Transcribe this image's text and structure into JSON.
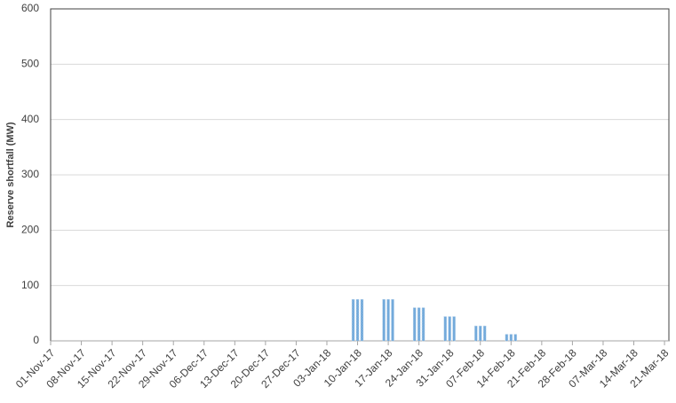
{
  "chart_data": {
    "type": "bar",
    "y_label": "Reserve shortfall (MW)",
    "x": [
      "09-Jan-18",
      "10-Jan-18",
      "11-Jan-18",
      "16-Jan-18",
      "17-Jan-18",
      "18-Jan-18",
      "23-Jan-18",
      "24-Jan-18",
      "25-Jan-18",
      "30-Jan-18",
      "31-Jan-18",
      "01-Feb-18",
      "06-Feb-18",
      "07-Feb-18",
      "08-Feb-18",
      "13-Feb-18",
      "14-Feb-18",
      "15-Feb-18"
    ],
    "values": [
      75,
      75,
      75,
      75,
      75,
      75,
      60,
      60,
      60,
      44,
      44,
      44,
      27,
      27,
      27,
      12,
      12,
      12
    ],
    "color": "#5b9bd5",
    "xlim": [
      "01-Nov-17",
      "22-Mar-18"
    ],
    "xticks": [
      "01-Nov-17",
      "08-Nov-17",
      "15-Nov-17",
      "22-Nov-17",
      "29-Nov-17",
      "06-Dec-17",
      "13-Dec-17",
      "20-Dec-17",
      "27-Dec-17",
      "03-Jan-18",
      "10-Jan-18",
      "17-Jan-18",
      "24-Jan-18",
      "31-Jan-18",
      "07-Feb-18",
      "14-Feb-18",
      "21-Feb-18",
      "28-Feb-18",
      "07-Mar-18",
      "14-Mar-18",
      "21-Mar-18"
    ],
    "ylim": [
      0,
      600
    ],
    "yticks": [
      0,
      100,
      200,
      300,
      400,
      500,
      600
    ],
    "grid": true
  }
}
